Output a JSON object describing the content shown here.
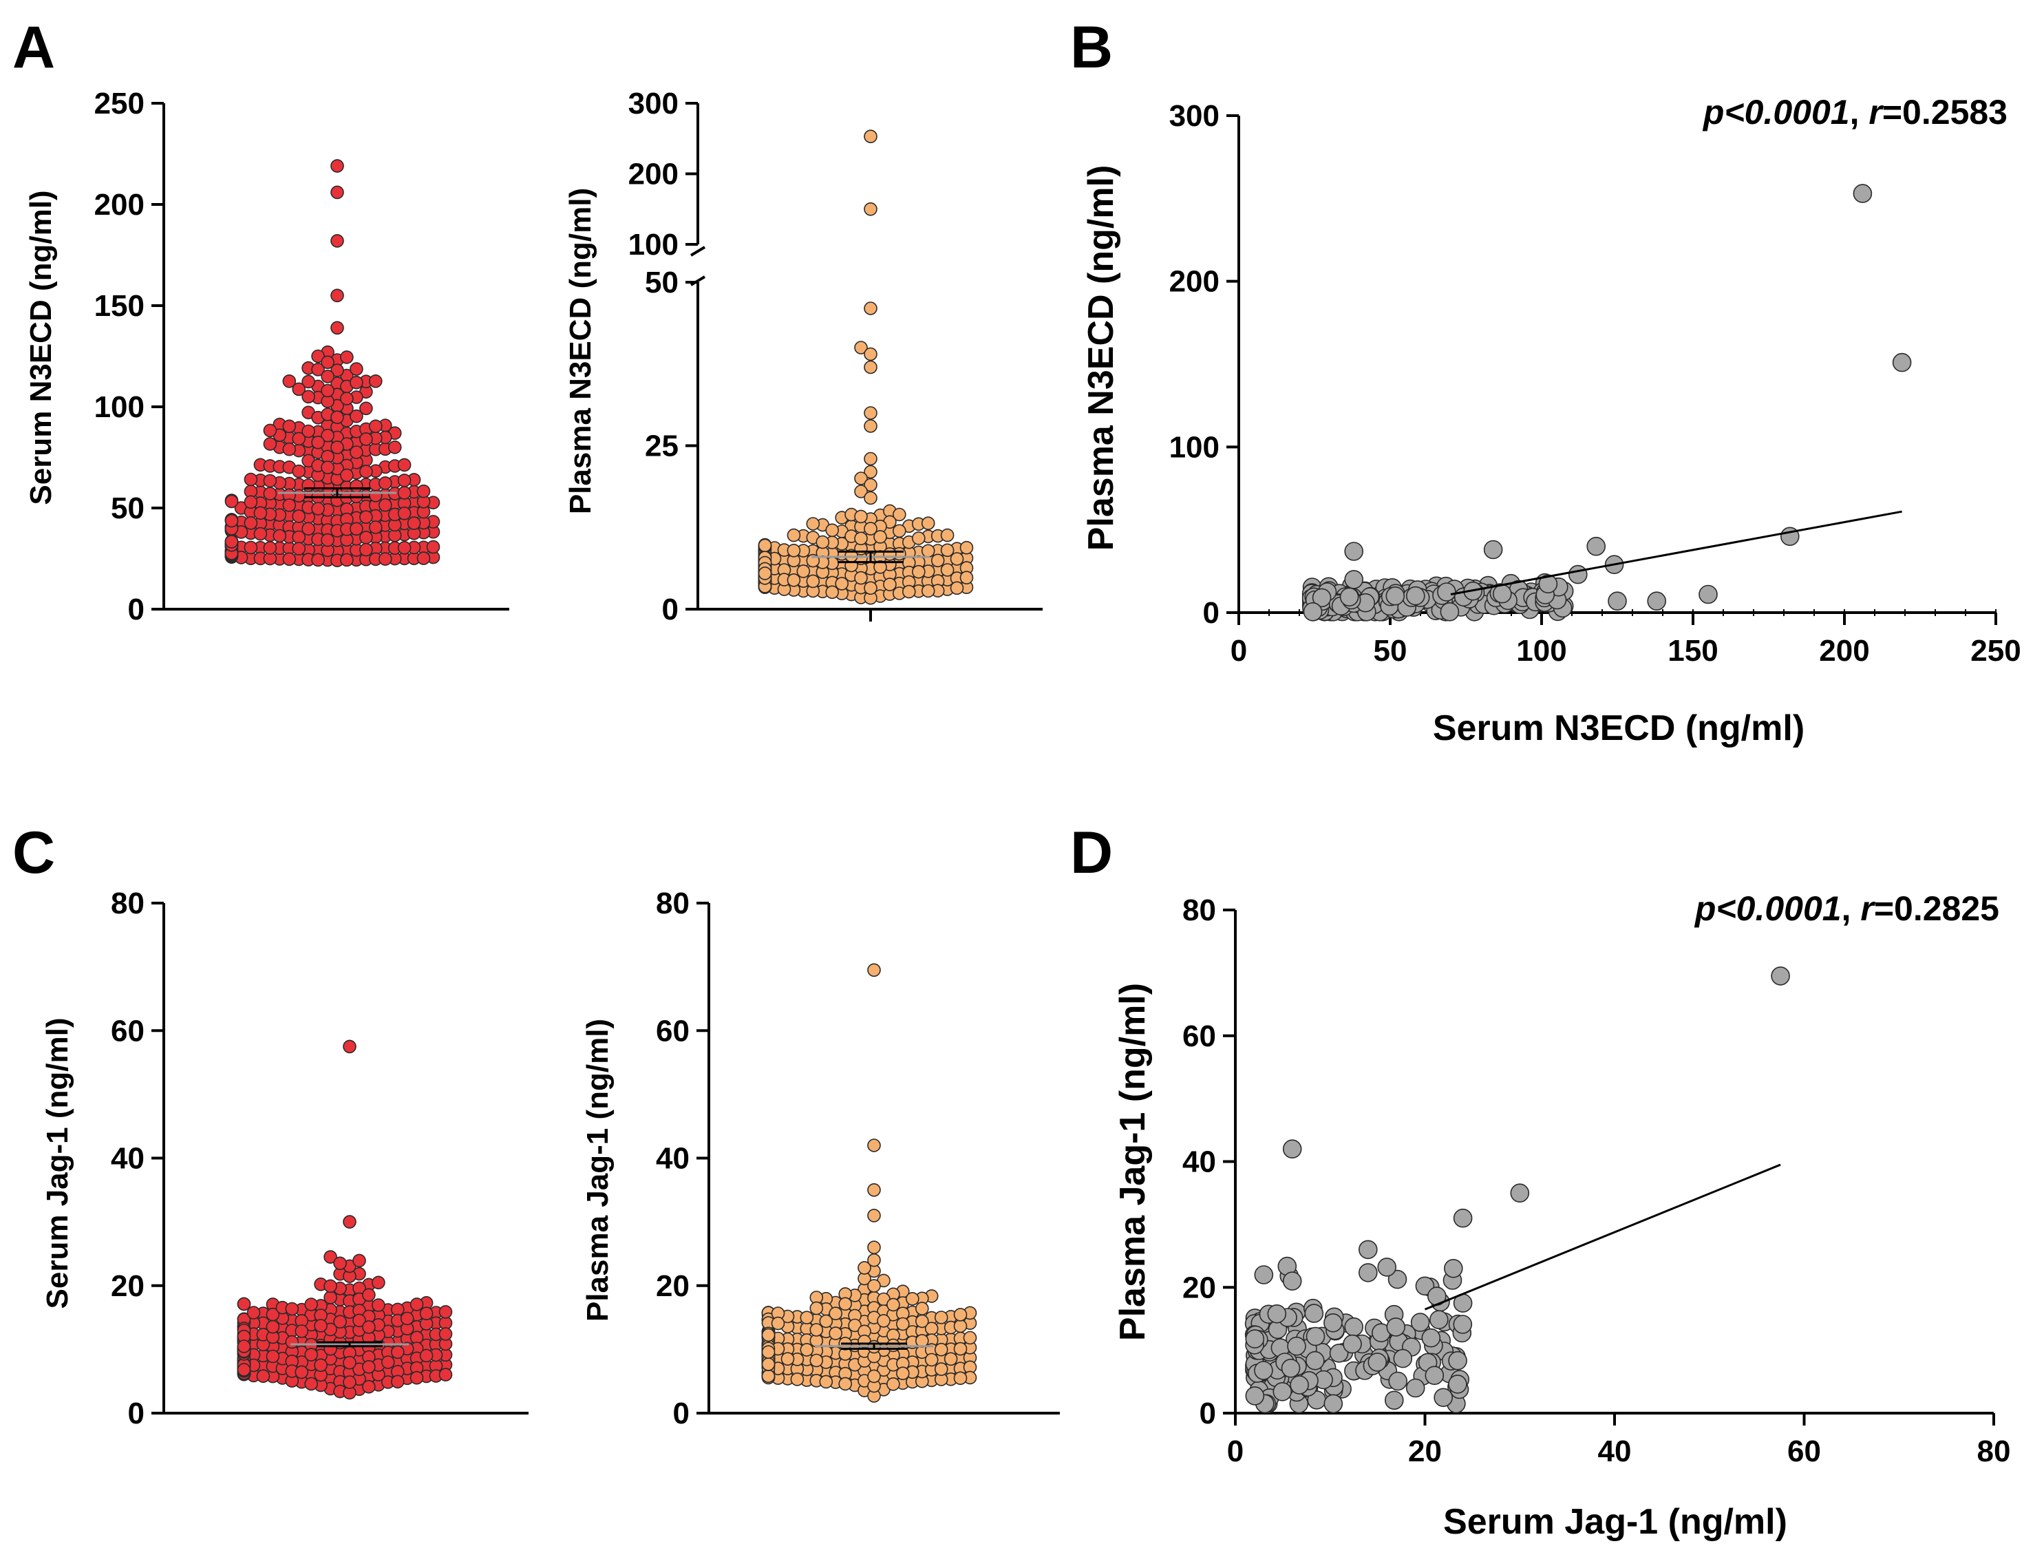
{
  "figure": {
    "panels": [
      {
        "letter": "A"
      },
      {
        "letter": "B"
      },
      {
        "letter": "C"
      },
      {
        "letter": "D"
      }
    ]
  },
  "colors": {
    "serum_points": "#e8323a",
    "plasma_points": "#f5b070",
    "scatter_points": "#a6a6a6",
    "point_edge": "#2a2a2a",
    "axis": "#000000"
  },
  "chart_data": [
    {
      "id": "A1",
      "type": "scatter",
      "subtype": "beeswarm",
      "panel": "A",
      "ylabel": "Serum N3ECD (ng/ml)",
      "ylim": [
        0,
        250
      ],
      "yticks": [
        "0",
        "50",
        "100",
        "150",
        "200",
        "250"
      ],
      "mean": 57.5,
      "sem": 2.2,
      "outliers": [
        219,
        206,
        182,
        155,
        139,
        125,
        122,
        118,
        115,
        112,
        108,
        105
      ],
      "distribution": {
        "n": 330,
        "median": 48,
        "min": 24,
        "q3": 68
      },
      "color": "serum"
    },
    {
      "id": "A2",
      "type": "scatter",
      "subtype": "beeswarm",
      "panel": "A",
      "ylabel": "Plasma N3ECD (ng/ml)",
      "axis_break": true,
      "ylim_lower": [
        0,
        50
      ],
      "ylim_upper": [
        100,
        300
      ],
      "yticks_lower": [
        "0",
        "25",
        "50"
      ],
      "yticks_upper": [
        "100",
        "200",
        "300"
      ],
      "mean": 8.0,
      "sem": 0.8,
      "outliers": [
        253,
        150,
        46,
        40,
        39,
        37,
        30,
        28,
        23,
        21,
        20,
        19,
        18,
        17
      ],
      "distribution": {
        "n": 330,
        "median": 6,
        "min": 0.5,
        "q3": 8
      },
      "color": "plasma"
    },
    {
      "id": "B",
      "type": "scatter",
      "panel": "B",
      "xlabel": "Serum N3ECD (ng/ml)",
      "ylabel": "Plasma N3ECD (ng/ml)",
      "xlim": [
        0,
        250
      ],
      "ylim": [
        0,
        300
      ],
      "xticks": [
        "0",
        "50",
        "100",
        "150",
        "200",
        "250"
      ],
      "yticks": [
        "0",
        "100",
        "200",
        "300"
      ],
      "annotation": {
        "p": "p<0.0001",
        "sep": ", ",
        "r_label": "r",
        "r_value": "=0.2583"
      },
      "regression": {
        "x": [
          70,
          219
        ],
        "y": [
          11,
          61
        ]
      },
      "outliers": [
        [
          206,
          253
        ],
        [
          219,
          151
        ],
        [
          182,
          46
        ],
        [
          118,
          40
        ],
        [
          84,
          38
        ],
        [
          38,
          37
        ],
        [
          124,
          29
        ],
        [
          112,
          23
        ],
        [
          38,
          20
        ],
        [
          155,
          11
        ],
        [
          138,
          7
        ],
        [
          125,
          7
        ]
      ],
      "distribution": {
        "n": 330,
        "x_range": [
          24,
          110
        ],
        "y_range": [
          0.5,
          18
        ]
      }
    },
    {
      "id": "C1",
      "type": "scatter",
      "subtype": "beeswarm",
      "panel": "C",
      "ylabel": "Serum Jag-1 (ng/ml)",
      "ylim": [
        0,
        80
      ],
      "yticks": [
        "0",
        "20",
        "40",
        "60",
        "80"
      ],
      "mean": 10.8,
      "sem": 0.3,
      "outliers": [
        57.5,
        30,
        24.5,
        23.5
      ],
      "distribution": {
        "n": 330,
        "median": 10,
        "min": 2,
        "q3": 13
      },
      "color": "serum"
    },
    {
      "id": "C2",
      "type": "scatter",
      "subtype": "beeswarm",
      "panel": "C",
      "ylabel": "Plasma Jag-1 (ng/ml)",
      "ylim": [
        0,
        80
      ],
      "yticks": [
        "0",
        "20",
        "40",
        "60",
        "80"
      ],
      "mean": 10.5,
      "sem": 0.4,
      "outliers": [
        69.5,
        42,
        35,
        31,
        26,
        24
      ],
      "distribution": {
        "n": 330,
        "median": 10,
        "min": 1.5,
        "q3": 13
      },
      "color": "plasma"
    },
    {
      "id": "D",
      "type": "scatter",
      "panel": "D",
      "xlabel": "Serum Jag-1 (ng/ml)",
      "ylabel": "Plasma Jag-1 (ng/ml)",
      "xlim": [
        0,
        80
      ],
      "ylim": [
        0,
        80
      ],
      "xticks": [
        "0",
        "20",
        "40",
        "60",
        "80"
      ],
      "yticks": [
        "0",
        "20",
        "40",
        "60",
        "80"
      ],
      "annotation": {
        "p": "p<0.0001",
        "sep": ", ",
        "r_label": "r",
        "r_value": "=0.2825"
      },
      "regression": {
        "x": [
          20,
          57.5
        ],
        "y": [
          16.5,
          39.5
        ]
      },
      "outliers": [
        [
          57.5,
          69.5
        ],
        [
          6,
          42
        ],
        [
          30,
          35
        ],
        [
          24,
          31
        ],
        [
          14,
          26
        ],
        [
          23,
          23
        ],
        [
          3,
          22
        ],
        [
          6,
          21
        ],
        [
          24,
          17.5
        ],
        [
          21,
          6
        ],
        [
          19,
          4
        ]
      ],
      "distribution": {
        "n": 180,
        "x_range": [
          2,
          24
        ],
        "y_range": [
          1.5,
          24
        ]
      }
    }
  ]
}
